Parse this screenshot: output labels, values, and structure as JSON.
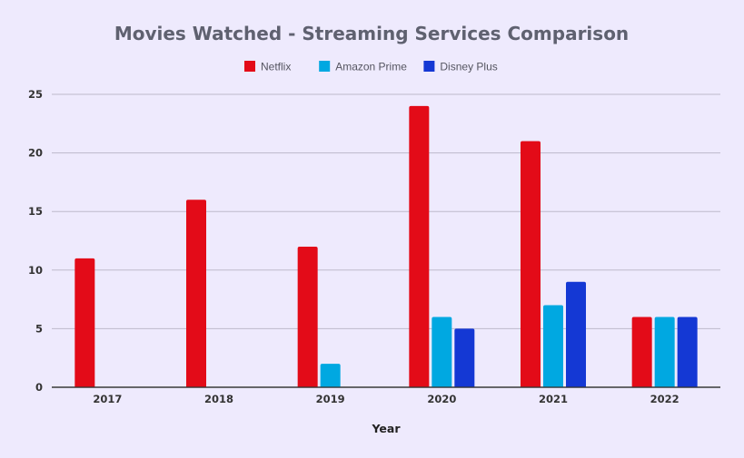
{
  "chart_data": {
    "type": "bar",
    "title": "Movies Watched - Streaming Services Comparison",
    "xlabel": "Year",
    "ylabel": "",
    "categories": [
      "2017",
      "2018",
      "2019",
      "2020",
      "2021",
      "2022"
    ],
    "series": [
      {
        "name": "Netflix",
        "color": "#E30B18",
        "values": [
          11,
          16,
          12,
          24,
          21,
          6
        ]
      },
      {
        "name": "Amazon Prime",
        "color": "#00A8E1",
        "values": [
          0,
          0,
          2,
          6,
          7,
          6
        ]
      },
      {
        "name": "Disney Plus",
        "color": "#1438D4",
        "values": [
          0,
          0,
          0,
          5,
          9,
          6
        ]
      }
    ],
    "ylim": [
      0,
      25
    ],
    "yticks": [
      "0",
      "5",
      "10",
      "15",
      "20",
      "25"
    ],
    "grid": true,
    "legend_position": "top-center"
  },
  "colors": {
    "background": "#EEEAFD",
    "title": "#5F6170",
    "grid": "#BDB9CC"
  }
}
